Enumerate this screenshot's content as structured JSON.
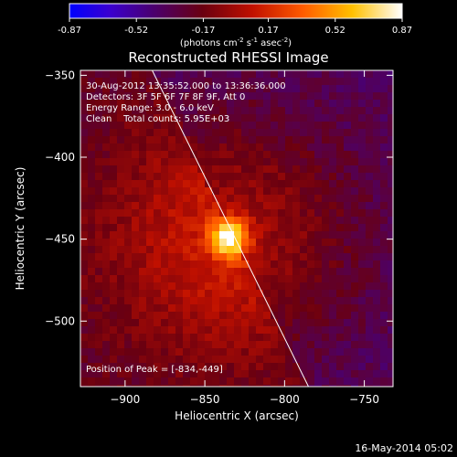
{
  "colorbar": {
    "tick_labels": [
      "-0.87",
      "-0.52",
      "-0.17",
      "0.17",
      "0.52",
      "0.87"
    ],
    "range": [
      -0.87,
      0.87
    ],
    "units_text": "(photons cm",
    "units_exp1": "-2",
    "units_mid1": " s",
    "units_exp2": "-1",
    "units_mid2": " asec",
    "units_exp3": "-2",
    "units_end": ")"
  },
  "title": "Reconstructed RHESSI Image",
  "info": {
    "time_range": "30-Aug-2012 13:35:52.000 to 13:36:36.000",
    "detectors": "Detectors: 3F 5F 6F 7F 8F 9F, Att 0",
    "energy": "Energy Range: 3.0 - 6.0 keV",
    "clean": "Clean    Total counts: 5.95E+03",
    "peak": "Position of Peak = [-834,-449]"
  },
  "xaxis": {
    "label": "Heliocentric X (arcsec)",
    "range": [
      -928,
      -732
    ],
    "ticks": [
      -900,
      -850,
      -800,
      -750
    ],
    "tick_labels": [
      "−900",
      "−850",
      "−800",
      "−750"
    ]
  },
  "yaxis": {
    "label": "Heliocentric Y (arcsec)",
    "range": [
      -540,
      -347
    ],
    "ticks": [
      -350,
      -400,
      -450,
      -500
    ],
    "tick_labels": [
      "−350",
      "−400",
      "−450",
      "−500"
    ]
  },
  "peak": {
    "x": -834,
    "y": -449
  },
  "limb_line": {
    "x1": -883,
    "y1": -347,
    "x2": -785,
    "y2": -540
  },
  "timestamp": "16-May-2014 05:02",
  "colors": {
    "background": "#000000",
    "limb": "#ffffff",
    "text": "#ffffff"
  }
}
